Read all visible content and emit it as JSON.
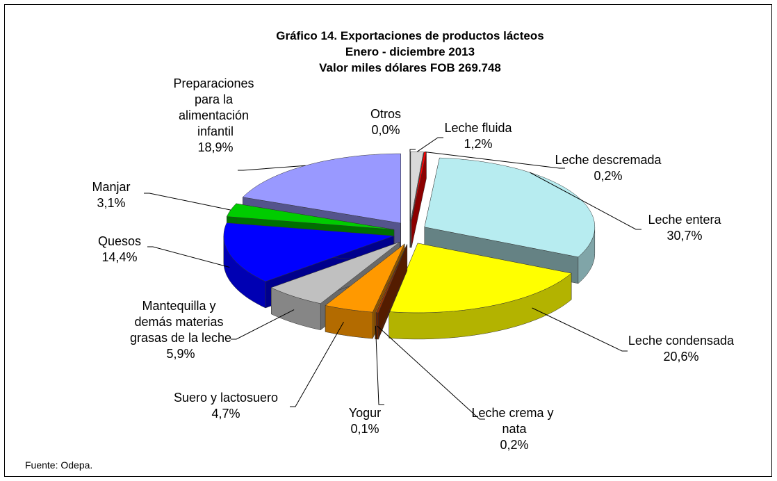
{
  "chart_data": {
    "type": "pie3d",
    "title": "Gráfico 14. Exportaciones de productos lácteos",
    "subtitle": [
      "Enero - diciembre 2013",
      "Valor miles dólares FOB 269.748"
    ],
    "source": "Fuente: Odepa.",
    "categories": [
      "Otros",
      "Leche fluida",
      "Leche descremada",
      "Leche entera",
      "Leche condensada",
      "Leche crema y nata",
      "Yogur",
      "Suero y lactosuero",
      "Mantequilla y demás materias grasas de la leche",
      "Quesos",
      "Manjar",
      "Preparaciones para la alimentación infantil"
    ],
    "values": [
      0.0,
      1.2,
      0.2,
      30.7,
      20.6,
      0.2,
      0.1,
      4.7,
      5.9,
      14.4,
      3.1,
      18.9
    ],
    "value_labels": [
      "0,0%",
      "1,2%",
      "0,2%",
      "30,7%",
      "20,6%",
      "0,2%",
      "0,1%",
      "4,7%",
      "5,9%",
      "14,4%",
      "3,1%",
      "18,9%"
    ],
    "colors": [
      "#ffffff",
      "#d9d9d9",
      "#ff0000",
      "#b7ecf0",
      "#ffff00",
      "#993300",
      "#cc6600",
      "#ff9900",
      "#c0c0c0",
      "#0000ff",
      "#00cc00",
      "#9999ff"
    ]
  }
}
